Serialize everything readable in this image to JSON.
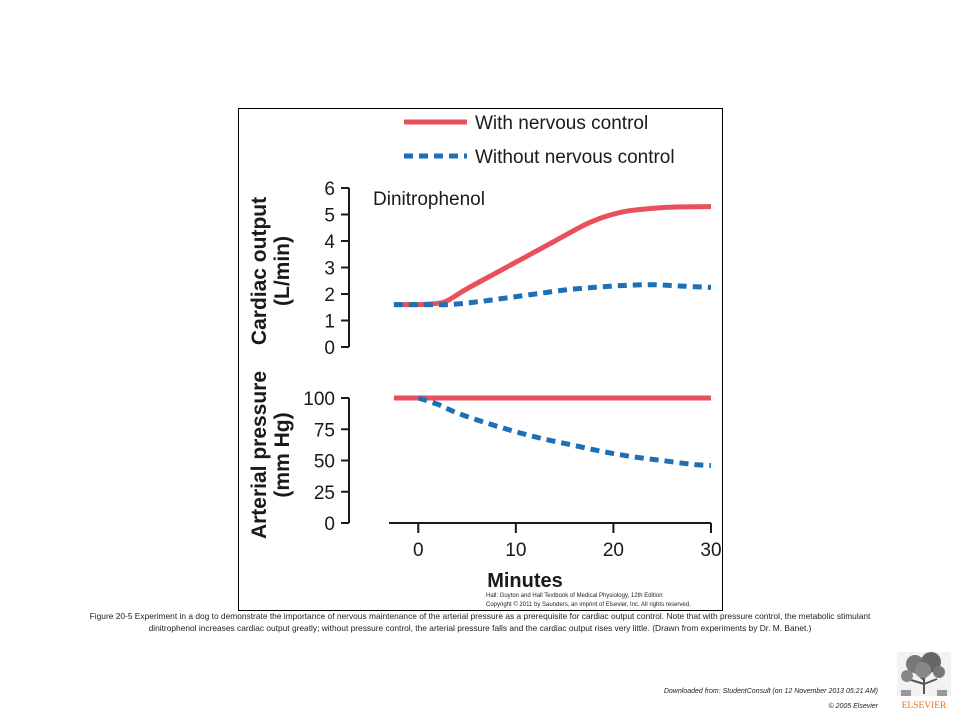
{
  "figure": {
    "credit_line1": "Hall: Guyton and Hall Textbook of Medical Physiology, 12th Edition",
    "credit_line2": "Copyright © 2011 by Saunders, an imprint of Elsevier, Inc. All rights reserved."
  },
  "caption": "Figure 20-5 Experiment in a dog to demonstrate the importance of nervous maintenance of the arterial pressure as a prerequisite for cardiac output control. Note that with pressure control, the metabolic stimulant dinitrophenol increases cardiac output greatly; without pressure control, the arterial pressure falls and the cardiac output rises very little. (Drawn from experiments by Dr. M. Banet.)",
  "footer": {
    "download_note": "Downloaded from: StudentConsult (on 12 November 2013 05:21 AM)",
    "copyright": "© 2005 Elsevier",
    "logo_text": "ELSEVIER"
  },
  "colors": {
    "with_control": "#e8505b",
    "without_control": "#1f6fb5"
  },
  "chart_data": {
    "type": "line",
    "legend": [
      {
        "label": "With nervous control",
        "style": "solid",
        "color": "#e8505b"
      },
      {
        "label": "Without nervous control",
        "style": "dashed",
        "color": "#1f6fb5"
      }
    ],
    "legend_position": "top",
    "xlabel": "Minutes",
    "xlim": [
      -3,
      30
    ],
    "xticks": [
      0,
      10,
      20,
      30
    ],
    "annotation": "Dinitrophenol",
    "panels": [
      {
        "ylabel_line1": "Cardiac output",
        "ylabel_line2": "(L/min)",
        "ylim": [
          0,
          6
        ],
        "yticks": [
          0,
          1,
          2,
          3,
          4,
          5,
          6
        ],
        "series": [
          {
            "name": "With nervous control",
            "x": [
              -2.5,
              0,
              2,
              3,
              5,
              8,
              11,
              14,
              17,
              19,
              21,
              23,
              26,
              30
            ],
            "y": [
              1.6,
              1.6,
              1.65,
              1.75,
              2.2,
              2.8,
              3.4,
              4.0,
              4.6,
              4.9,
              5.1,
              5.2,
              5.28,
              5.3
            ]
          },
          {
            "name": "Without nervous control",
            "x": [
              -2.5,
              0,
              3,
              6,
              9,
              12,
              15,
              18,
              21,
              24,
              27,
              30
            ],
            "y": [
              1.6,
              1.6,
              1.6,
              1.7,
              1.85,
              2.0,
              2.15,
              2.25,
              2.32,
              2.35,
              2.3,
              2.25
            ]
          }
        ]
      },
      {
        "ylabel_line1": "Arterial pressure",
        "ylabel_line2": "(mm Hg)",
        "ylim": [
          0,
          100
        ],
        "yticks": [
          0,
          25,
          50,
          75,
          100
        ],
        "series": [
          {
            "name": "With nervous control",
            "x": [
              -2.5,
              30
            ],
            "y": [
              100,
              100
            ]
          },
          {
            "name": "Without nervous control",
            "x": [
              0,
              2,
              4,
              7,
              10,
              13,
              16,
              19,
              22,
              25,
              28,
              30
            ],
            "y": [
              100,
              95,
              88,
              80,
              73,
              67,
              62,
              57,
              53,
              50,
              47,
              46
            ]
          }
        ]
      }
    ]
  }
}
